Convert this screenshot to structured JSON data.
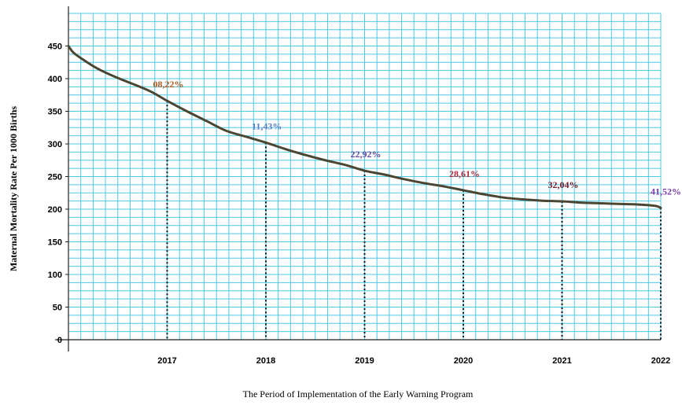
{
  "chart_data": {
    "type": "line",
    "xlabel": "The Period of Implementation of the Early Warning Program",
    "ylabel": "Maternal Mortality Rate Per 1000 Births",
    "ylim": [
      0,
      500
    ],
    "yticks": [
      0,
      50,
      100,
      150,
      200,
      250,
      300,
      350,
      400,
      450
    ],
    "x_categories": [
      "2017",
      "2018",
      "2019",
      "2020",
      "2021",
      "2022"
    ],
    "grid": true,
    "grid_color": "#4fc8e6",
    "line_color": "#4a4632",
    "series": [
      {
        "x": [
          2016,
          2016.05,
          2016.15,
          2016.3,
          2016.5,
          2016.7,
          2016.85,
          2017,
          2017.2,
          2017.4,
          2017.6,
          2017.8,
          2018,
          2018.2,
          2018.4,
          2018.6,
          2018.8,
          2019,
          2019.2,
          2019.4,
          2019.6,
          2019.8,
          2020,
          2020.2,
          2020.4,
          2020.6,
          2020.8,
          2021,
          2021.2,
          2021.4,
          2021.6,
          2021.8,
          2021.95,
          2022
        ],
        "y": [
          450,
          440,
          429,
          415,
          401,
          389,
          379,
          366,
          350,
          335,
          320,
          311,
          302,
          292,
          283,
          275,
          268,
          259,
          253,
          246,
          240,
          235,
          229,
          223,
          218,
          215,
          213,
          212,
          210,
          209,
          208,
          207,
          205,
          202
        ]
      }
    ],
    "annotations": [
      {
        "x": 2017,
        "y": 366,
        "label": "08,22%",
        "color": "#b05a1e"
      },
      {
        "x": 2018,
        "y": 302,
        "label": "11,43%",
        "color": "#5a7dbf"
      },
      {
        "x": 2019,
        "y": 259,
        "label": "22,92%",
        "color": "#6a4c9c"
      },
      {
        "x": 2020,
        "y": 229,
        "label": "28,61%",
        "color": "#b02a3a"
      },
      {
        "x": 2021,
        "y": 212,
        "label": "32,04%",
        "color": "#7a1a28"
      },
      {
        "x": 2022,
        "y": 202,
        "label": "41,52%",
        "color": "#7a3aa8"
      }
    ]
  }
}
